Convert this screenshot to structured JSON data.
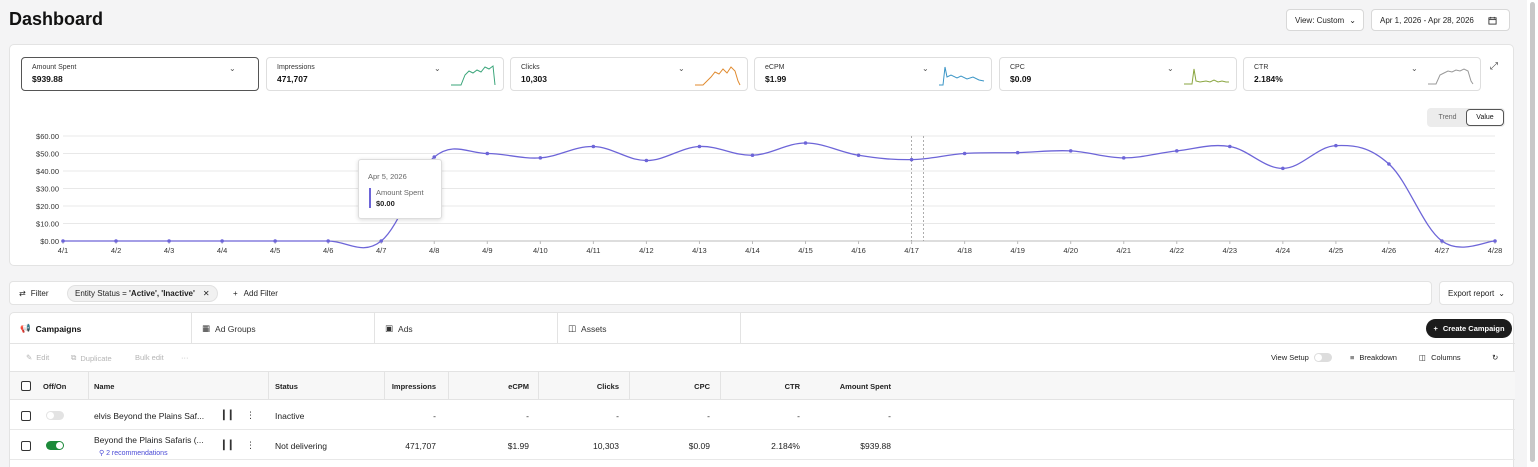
{
  "header": {
    "title": "Dashboard",
    "view_label": "View: Custom",
    "date_range": "Apr 1, 2026 - Apr 28, 2026"
  },
  "metrics": [
    {
      "label": "Amount Spent",
      "value": "$939.88",
      "active": true
    },
    {
      "label": "Impressions",
      "value": "471,707",
      "spark_color": "#3aa57a"
    },
    {
      "label": "Clicks",
      "value": "10,303",
      "spark_color": "#e08a2e"
    },
    {
      "label": "eCPM",
      "value": "$1.99",
      "spark_color": "#3a95c6"
    },
    {
      "label": "CPC",
      "value": "$0.09",
      "spark_color": "#8aa640"
    },
    {
      "label": "CTR",
      "value": "2.184%",
      "spark_color": "#999999"
    }
  ],
  "chart_toggle": {
    "trend": "Trend",
    "value": "Value",
    "selected": "Value"
  },
  "chart_data": {
    "type": "line",
    "series": [
      {
        "name": "Amount Spent",
        "color": "#6d65d8",
        "values": [
          0,
          0,
          0,
          0,
          0,
          0,
          0,
          48,
          50,
          47.5,
          54,
          46,
          54,
          49,
          56,
          49,
          46.5,
          50,
          50.5,
          51.5,
          47.5,
          51.5,
          54,
          41.5,
          54.5,
          44,
          0,
          0
        ]
      }
    ],
    "x": [
      "4/1",
      "4/2",
      "4/3",
      "4/4",
      "4/5",
      "4/6",
      "4/7",
      "4/8",
      "4/9",
      "4/10",
      "4/11",
      "4/12",
      "4/13",
      "4/14",
      "4/15",
      "4/16",
      "4/17",
      "4/18",
      "4/19",
      "4/20",
      "4/21",
      "4/22",
      "4/23",
      "4/24",
      "4/25",
      "4/26",
      "4/27",
      "4/28"
    ],
    "y_ticks": [
      "$0.00",
      "$10.00",
      "$20.00",
      "$30.00",
      "$40.00",
      "$50.00",
      "$60.00"
    ],
    "ylim": [
      0,
      60
    ],
    "grid": true
  },
  "tooltip": {
    "date": "Apr 5, 2026",
    "label": "Amount Spent",
    "value": "$0.00"
  },
  "filter_bar": {
    "filter_label": "Filter",
    "chip_prefix": "Entity Status = ",
    "chip_value": "'Active', 'Inactive'",
    "add_filter": "Add Filter",
    "export": "Export report"
  },
  "tabs": [
    {
      "label": "Campaigns",
      "icon": "megaphone-icon",
      "active": true
    },
    {
      "label": "Ad Groups",
      "icon": "grid-icon"
    },
    {
      "label": "Ads",
      "icon": "ad-icon"
    },
    {
      "label": "Assets",
      "icon": "image-icon"
    }
  ],
  "create_button": "Create Campaign",
  "actions": {
    "edit": "Edit",
    "duplicate": "Duplicate",
    "bulk_edit": "Bulk edit",
    "more": "···",
    "view_setup": "View Setup",
    "breakdown": "Breakdown",
    "columns": "Columns"
  },
  "table": {
    "columns": [
      "Off/On",
      "Name",
      "Status",
      "Impressions",
      "eCPM",
      "Clicks",
      "CPC",
      "CTR",
      "Amount Spent"
    ],
    "rows": [
      {
        "on": false,
        "name": "elvis Beyond the Plains Saf...",
        "status": "Inactive",
        "impressions": "-",
        "ecpm": "-",
        "clicks": "-",
        "cpc": "-",
        "ctr": "-",
        "amount": "-",
        "recs": ""
      },
      {
        "on": true,
        "name": "Beyond the Plains Safaris (...",
        "status": "Not delivering",
        "impressions": "471,707",
        "ecpm": "$1.99",
        "clicks": "10,303",
        "cpc": "$0.09",
        "ctr": "2.184%",
        "amount": "$939.88",
        "recs": "2 recommendations"
      }
    ]
  }
}
